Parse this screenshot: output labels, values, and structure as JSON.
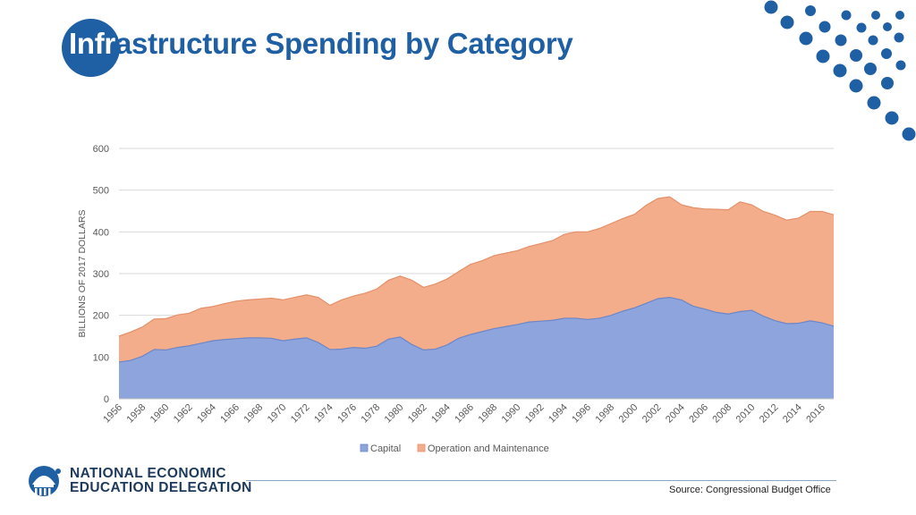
{
  "header": {
    "title_lead": "Infr",
    "title_rest": "astructure Spending by Category"
  },
  "chart_data": {
    "type": "area",
    "stacked": true,
    "title": "Infrastructure Spending by Category",
    "ylabel": "BILLIONS OF 2017 DOLLARS",
    "xlabel": "",
    "ylim": [
      0,
      600
    ],
    "y_ticks": [
      0,
      100,
      200,
      300,
      400,
      500,
      600
    ],
    "x_tick_labels": [
      "1956",
      "1958",
      "1960",
      "1962",
      "1964",
      "1966",
      "1968",
      "1970",
      "1972",
      "1974",
      "1976",
      "1978",
      "1980",
      "1982",
      "1984",
      "1986",
      "1988",
      "1990",
      "1992",
      "1994",
      "1996",
      "1998",
      "2000",
      "2002",
      "2004",
      "2006",
      "2008",
      "2010",
      "2012",
      "2014",
      "2016"
    ],
    "grid": true,
    "legend_position": "bottom",
    "x": [
      1956,
      1957,
      1958,
      1959,
      1960,
      1961,
      1962,
      1963,
      1964,
      1965,
      1966,
      1967,
      1968,
      1969,
      1970,
      1971,
      1972,
      1973,
      1974,
      1975,
      1976,
      1977,
      1978,
      1979,
      1980,
      1981,
      1982,
      1983,
      1984,
      1985,
      1986,
      1987,
      1988,
      1989,
      1990,
      1991,
      1992,
      1993,
      1994,
      1995,
      1996,
      1997,
      1998,
      1999,
      2000,
      2001,
      2002,
      2003,
      2004,
      2005,
      2006,
      2007,
      2008,
      2009,
      2010,
      2011,
      2012,
      2013,
      2014,
      2015,
      2016,
      2017
    ],
    "series": [
      {
        "name": "Capital",
        "color": "#8ea4dc",
        "values": [
          88,
          92,
          102,
          118,
          117,
          123,
          127,
          133,
          139,
          142,
          144,
          146,
          146,
          145,
          139,
          143,
          146,
          135,
          118,
          119,
          123,
          121,
          126,
          143,
          148,
          130,
          117,
          119,
          129,
          145,
          154,
          161,
          168,
          173,
          178,
          184,
          186,
          188,
          193,
          193,
          190,
          193,
          200,
          210,
          218,
          229,
          240,
          243,
          237,
          222,
          215,
          207,
          203,
          209,
          212,
          198,
          187,
          180,
          181,
          187,
          182,
          174
        ]
      },
      {
        "name": "Operation and Maintenance",
        "color": "#f3ad8a",
        "values": [
          62,
          68,
          70,
          73,
          75,
          78,
          78,
          84,
          82,
          86,
          90,
          91,
          93,
          96,
          98,
          100,
          103,
          108,
          106,
          118,
          123,
          132,
          137,
          141,
          146,
          154,
          150,
          156,
          158,
          160,
          168,
          170,
          175,
          176,
          177,
          181,
          186,
          191,
          201,
          207,
          210,
          215,
          220,
          222,
          224,
          235,
          240,
          241,
          228,
          236,
          240,
          247,
          250,
          263,
          253,
          251,
          253,
          248,
          252,
          262,
          267,
          267
        ]
      }
    ]
  },
  "legend": {
    "capital": "Capital",
    "om": "Operation and Maintenance"
  },
  "footer": {
    "logo_line1": "NATIONAL ECONOMIC",
    "logo_line2": "EDUCATION DELEGATION",
    "source": "Source: Congressional Budget Office"
  },
  "colors": {
    "brand_blue": "#1f5fa3",
    "capital_fill": "#8ea4dc",
    "capital_line": "#6c86c8",
    "om_fill": "#f3ad8a",
    "om_line": "#e4906a",
    "grid": "#d9d9d9",
    "axis_text": "#595959"
  }
}
